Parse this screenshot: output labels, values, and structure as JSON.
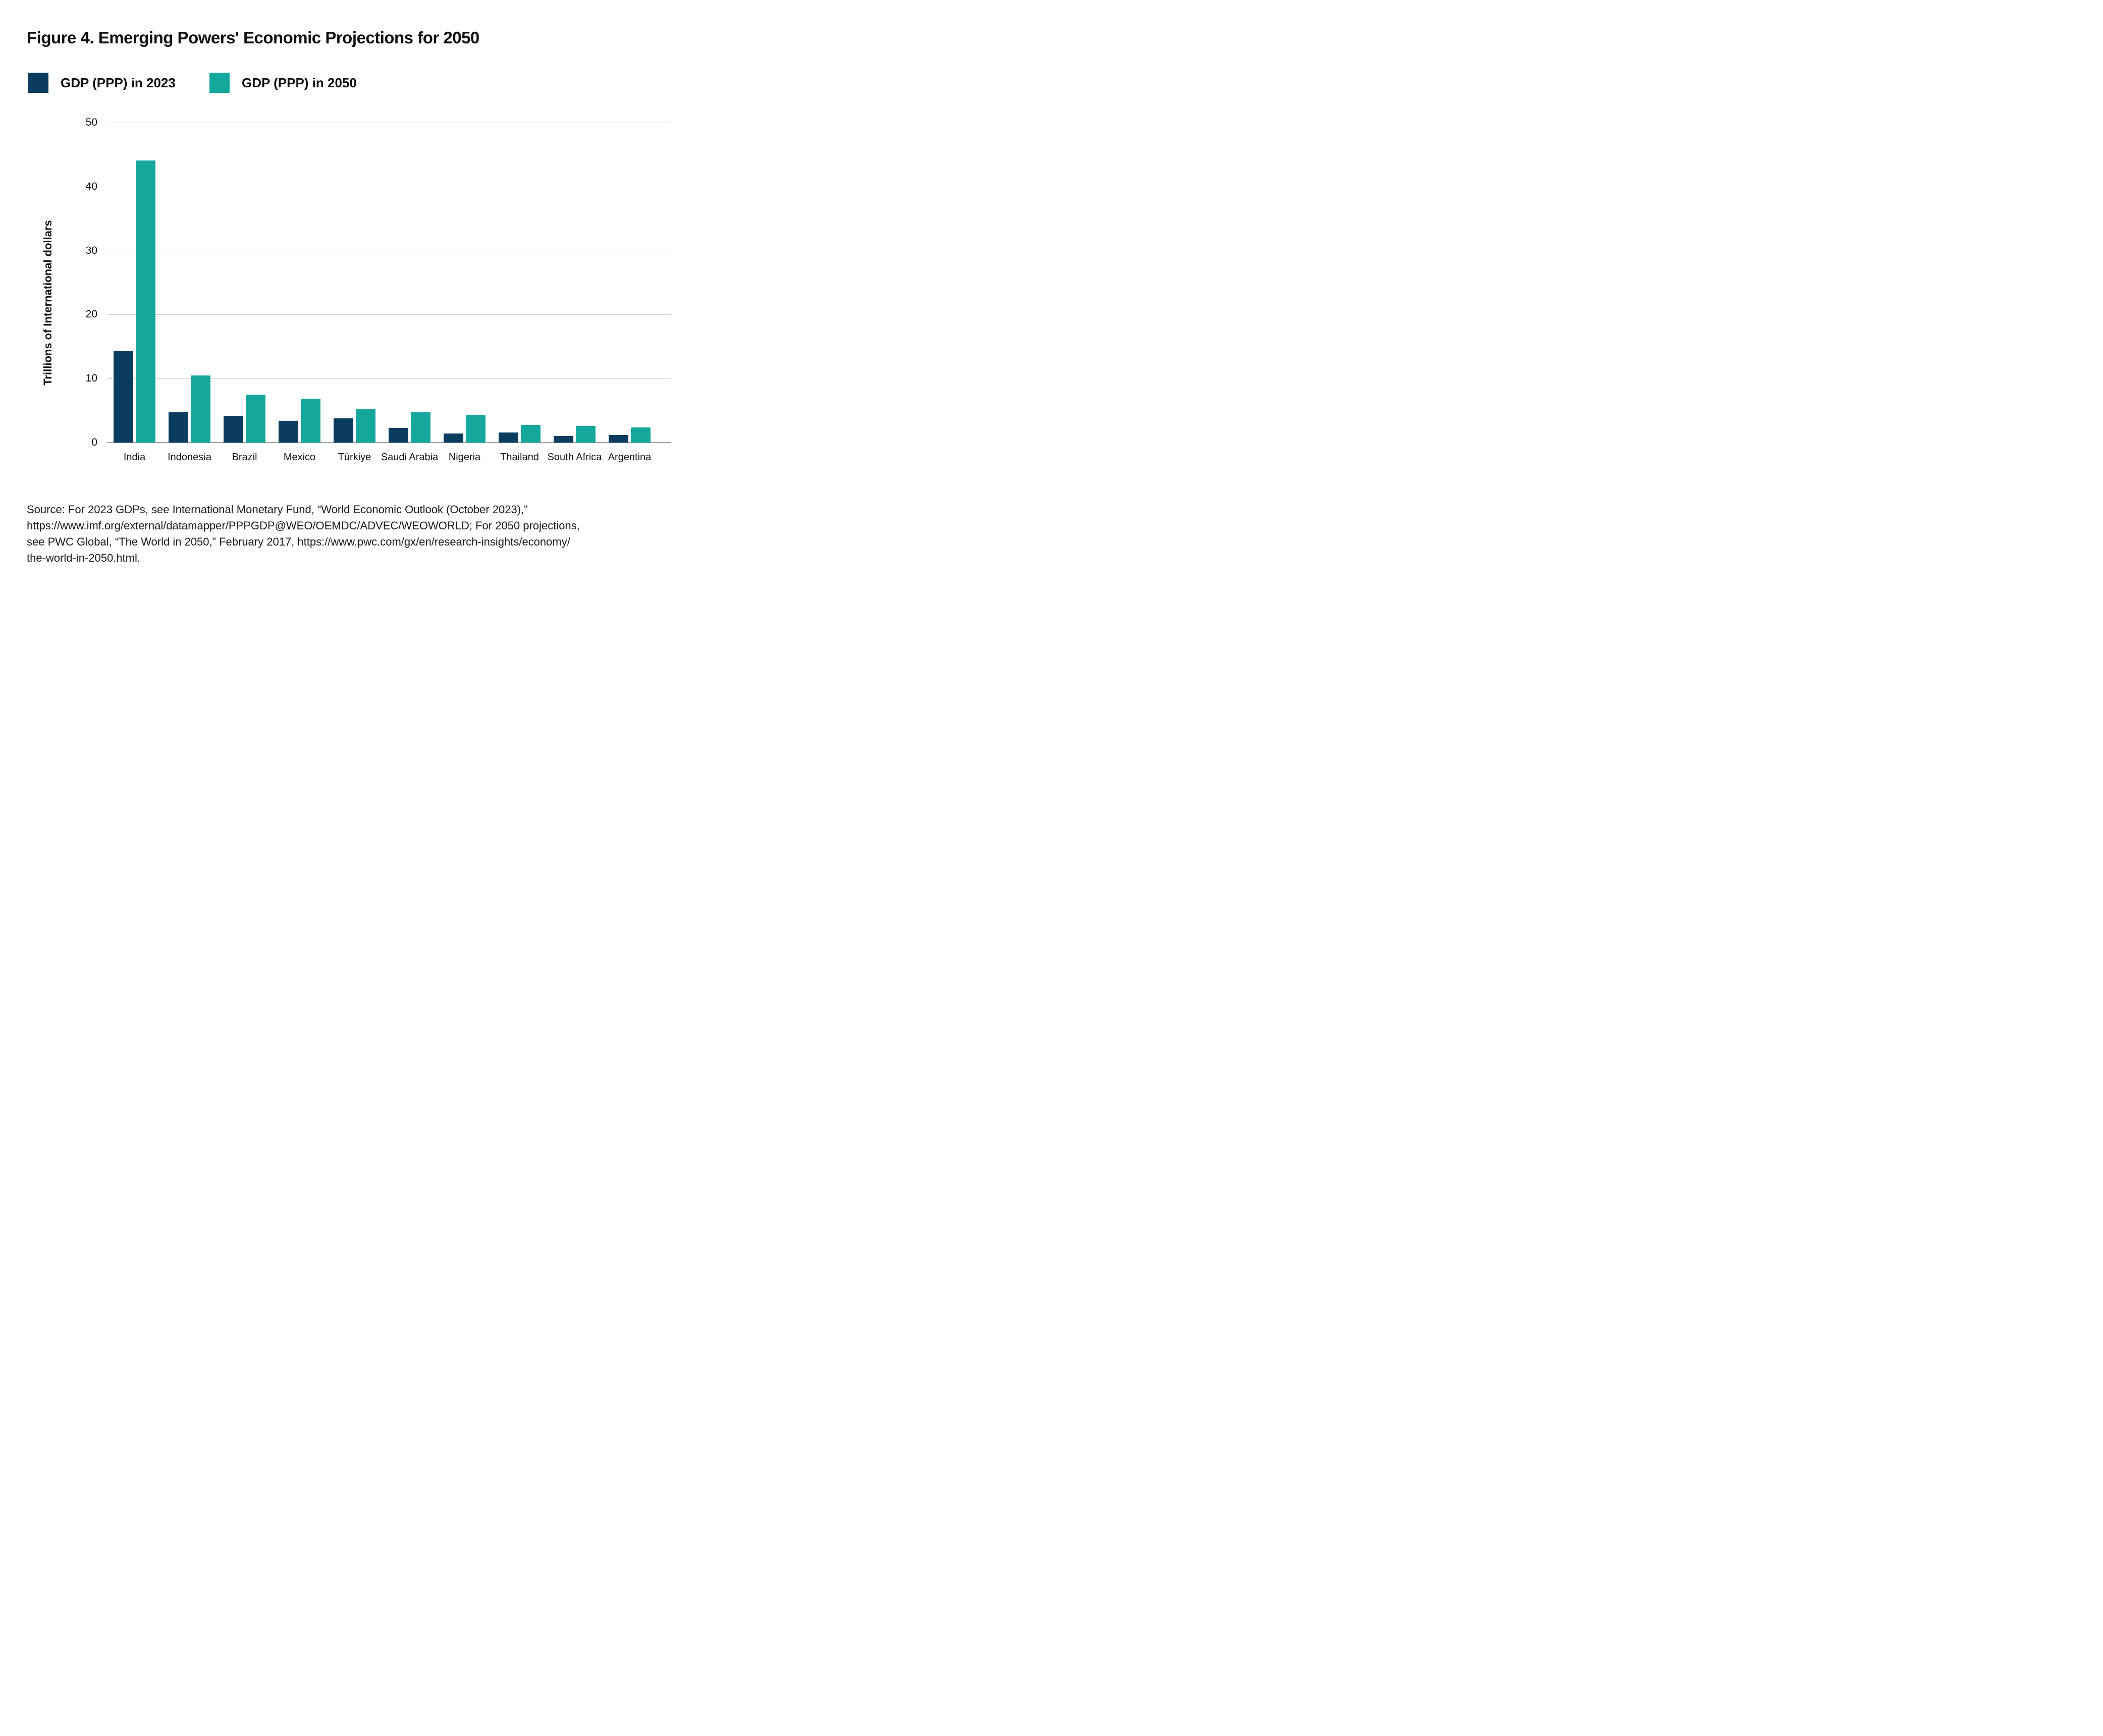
{
  "title": "Figure 4. Emerging Powers' Economic Projections for 2050",
  "y_axis_title": "Trillions of International dollars",
  "colors": {
    "navy_2023": "#0a3c60",
    "teal_2050": "#14a89d",
    "gridline": "#c6c6c6",
    "baseline": "#a2a2a2",
    "text": "#0d0d0d"
  },
  "source": {
    "line1": "Source: For 2023 GDPs, see International Monetary Fund, “World Economic Outlook (October 2023),”",
    "line2": "https://www.imf.org/external/datamapper/PPPGDP@WEO/OEMDC/ADVEC/WEOWORLD; For 2050 projections,",
    "line3": "see PWC Global, “The World in 2050,” February 2017, https://www.pwc.com/gx/en/research-insights/economy/",
    "line4": "the-world-in-2050.html."
  },
  "chart_data": {
    "type": "bar",
    "title": "Figure 4. Emerging Powers' Economic Projections for 2050",
    "categories": [
      "India",
      "Indonesia",
      "Brazil",
      "Mexico",
      "Türkiye",
      "Saudi Arabia",
      "Nigeria",
      "Thailand",
      "South Africa",
      "Argentina"
    ],
    "series": [
      {
        "name": "GDP (PPP) in 2023",
        "color": "#0a3c60",
        "values": [
          14.3,
          4.7,
          4.2,
          3.4,
          3.8,
          2.3,
          1.4,
          1.6,
          1.0,
          1.2
        ]
      },
      {
        "name": "GDP (PPP) in 2050",
        "color": "#14a89d",
        "values": [
          44.1,
          10.5,
          7.5,
          6.9,
          5.2,
          4.7,
          4.3,
          2.8,
          2.6,
          2.4
        ]
      }
    ],
    "xlabel": "",
    "ylabel": "Trillions of International dollars",
    "ylim": [
      0,
      50
    ],
    "yticks": [
      50,
      40,
      30,
      20,
      10,
      0
    ],
    "grid": true,
    "legend_position": "top-left"
  }
}
